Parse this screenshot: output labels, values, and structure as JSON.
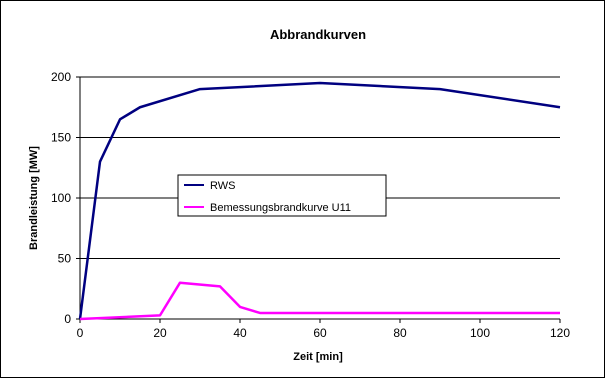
{
  "chart_data": {
    "type": "line",
    "title": "Abbrandkurven",
    "xlabel": "Zeit [min]",
    "ylabel": "Brandleistung [MW]",
    "xlim": [
      0,
      120
    ],
    "ylim": [
      0,
      200
    ],
    "x_ticks": [
      0,
      20,
      40,
      60,
      80,
      100,
      120
    ],
    "y_ticks": [
      0,
      50,
      100,
      150,
      200
    ],
    "grid": "horizontal",
    "legend_position": "center-left",
    "series": [
      {
        "name": "RWS",
        "color": "#000080",
        "x": [
          0,
          5,
          10,
          15,
          30,
          60,
          90,
          120
        ],
        "y": [
          0,
          130,
          165,
          175,
          190,
          195,
          190,
          175
        ]
      },
      {
        "name": "Bemessungsbrandkurve U11",
        "color": "#ff00ff",
        "x": [
          0,
          20,
          25,
          35,
          40,
          45,
          60,
          120
        ],
        "y": [
          0,
          3,
          30,
          27,
          10,
          5,
          5,
          5
        ]
      }
    ]
  }
}
